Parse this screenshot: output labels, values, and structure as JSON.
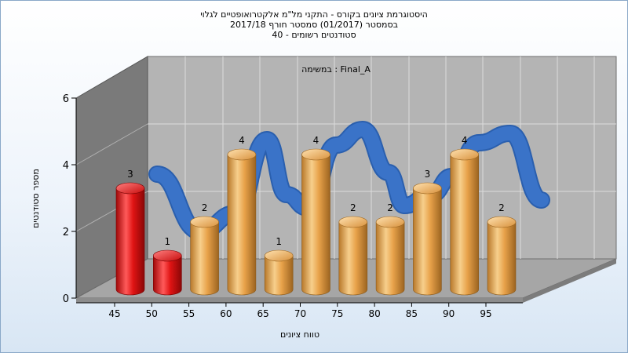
{
  "title_lines": [
    "היסטוגרמת ציונים בקורס - התקני מל\"מ אלקטרואופטיים לגלוי",
    "בסמסטר  (01/2017)  סמסטר חורף  2017/18",
    "סטודנטים רשומים - 40"
  ],
  "chart_data": {
    "type": "bar",
    "title": "היסטוגרמת ציונים בקורס - התקני מל\"מ אלקטרואופטיים לגלוי",
    "subtitle": "בסמסטר  (01/2017)  סמסטר חורף  2017/18 | סטודנטים רשומים - 40",
    "annotation": "במשימה : Final_A",
    "xlabel": "טווח ציונים",
    "ylabel": "מספר סטודנטים",
    "x_tick_labels": [
      "45",
      "50",
      "55",
      "60",
      "65",
      "70",
      "75",
      "80",
      "85",
      "90",
      "95"
    ],
    "y_ticks": [
      0,
      2,
      4,
      6
    ],
    "ylim": [
      0,
      6
    ],
    "grid": true,
    "three_d": true,
    "series": [
      {
        "values": [
          3,
          1,
          2,
          4,
          1,
          4,
          2,
          2,
          3,
          4,
          2
        ],
        "data_labels": [
          "3",
          "1",
          "2",
          "4",
          "1",
          "4",
          "2",
          "2",
          "3",
          "4",
          "2"
        ],
        "colors": [
          "#e01414",
          "#e01414",
          "#e8a24a",
          "#e8a24a",
          "#e8a24a",
          "#e8a24a",
          "#e8a24a",
          "#e8a24a",
          "#e8a24a",
          "#e8a24a",
          "#e8a24a"
        ]
      }
    ],
    "curve_color": "#3a73c8",
    "colors": {
      "fail": "#e01414",
      "pass": "#e8a24a",
      "curve": "#3a73c8",
      "back_wall": "#b4b4b4",
      "side_wall": "#7a7a7a",
      "floor": "#a6a6a6"
    }
  }
}
